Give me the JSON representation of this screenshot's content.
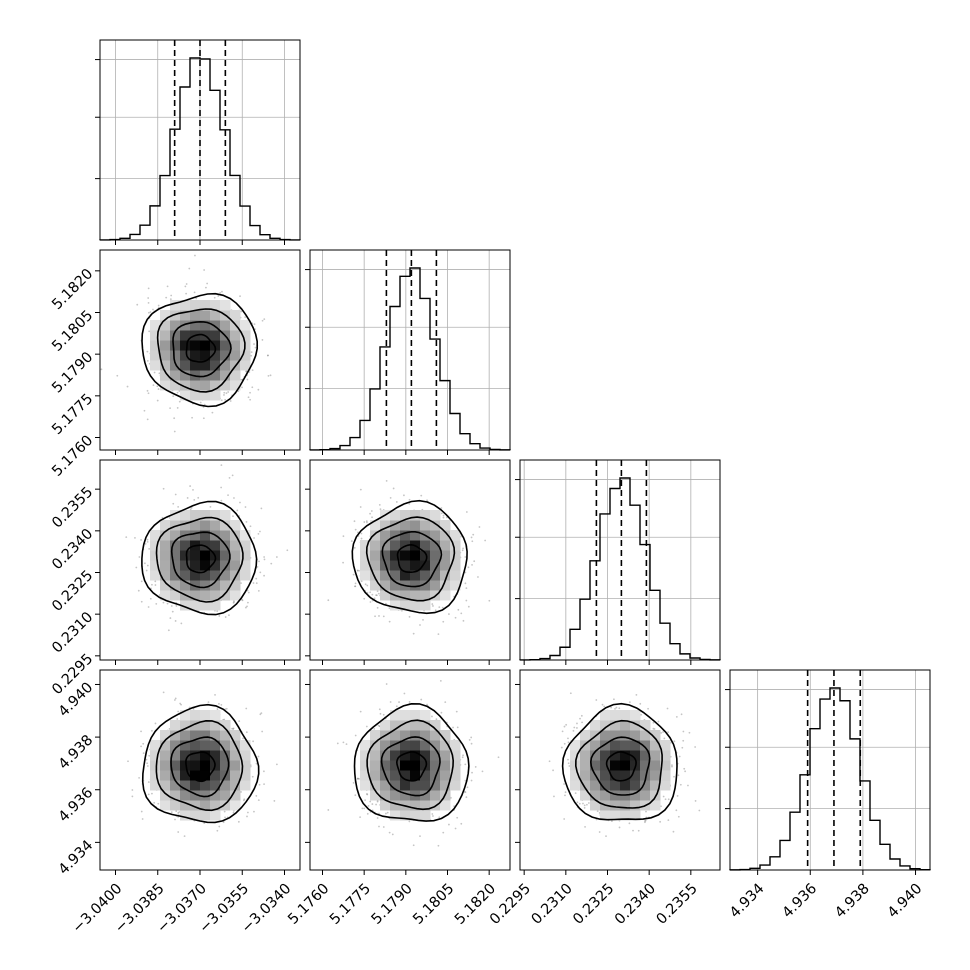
{
  "chart_data": {
    "type": "corner",
    "parameters": [
      {
        "index": 0,
        "median": -3.037,
        "q16": -3.0379,
        "q84": -3.0361,
        "sigma": 0.00087,
        "range": [
          -3.04055,
          -3.03345
        ],
        "ticks": [
          -3.04,
          -3.0385,
          -3.037,
          -3.0355,
          -3.034
        ],
        "tick_labels": [
          "−3.0400",
          "−3.0385",
          "−3.0370",
          "−3.0355",
          "−3.0340"
        ]
      },
      {
        "index": 1,
        "median": 5.1792,
        "q16": 5.1783,
        "q84": 5.1801,
        "sigma": 0.00088,
        "range": [
          5.17555,
          5.18275
        ],
        "ticks": [
          5.176,
          5.1775,
          5.179,
          5.1805,
          5.182
        ],
        "tick_labels": [
          "5.1760",
          "5.1775",
          "5.1790",
          "5.1805",
          "5.1820"
        ]
      },
      {
        "index": 2,
        "median": 0.233,
        "q16": 0.2321,
        "q84": 0.2339,
        "sigma": 0.00088,
        "range": [
          0.22935,
          0.23655
        ],
        "ticks": [
          0.2295,
          0.231,
          0.2325,
          0.234,
          0.2355
        ],
        "tick_labels": [
          "0.2295",
          "0.2310",
          "0.2325",
          "0.2340",
          "0.2355"
        ]
      },
      {
        "index": 3,
        "median": 4.9369,
        "q16": 4.9359,
        "q84": 4.9379,
        "sigma": 0.00098,
        "range": [
          4.93295,
          4.94055
        ],
        "ticks": [
          4.934,
          4.936,
          4.938,
          4.94
        ],
        "tick_labels": [
          "4.934",
          "4.936",
          "4.938",
          "4.940"
        ]
      }
    ],
    "histogram_bins": 20,
    "correlation": "none",
    "contour_levels_sigma": [
      0.5,
      1.0,
      1.5,
      2.0
    ],
    "quantile_lines": "dashed",
    "grid": true
  }
}
